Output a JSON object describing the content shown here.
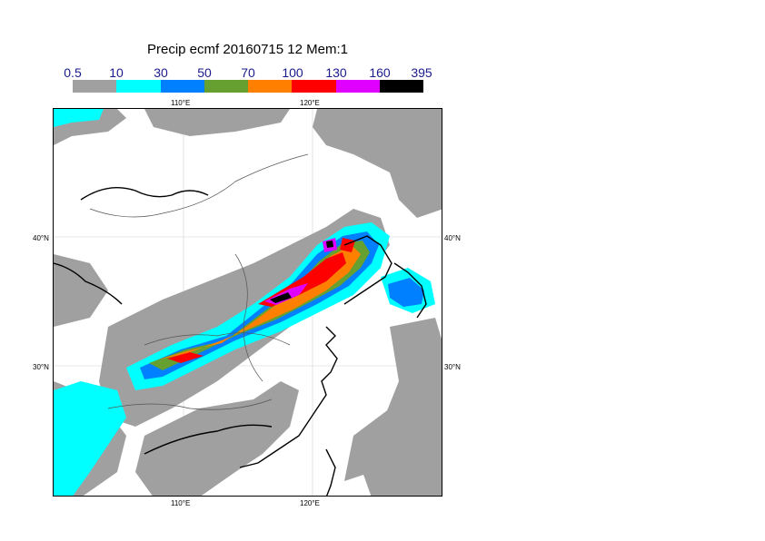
{
  "title": "Precip ecmf 20160715 12 Mem:1",
  "legend": {
    "labels": [
      "0.5",
      "10",
      "30",
      "50",
      "70",
      "100",
      "130",
      "160",
      "395"
    ],
    "colors": [
      "#a0a0a0",
      "#00ffff",
      "#0080ff",
      "#66a030",
      "#ff8000",
      "#ff0000",
      "#e000ff",
      "#000000"
    ]
  },
  "map": {
    "lon_ticks": [
      "110°E",
      "120°E"
    ],
    "lat_ticks": [
      "40°N",
      "30°N"
    ]
  }
}
